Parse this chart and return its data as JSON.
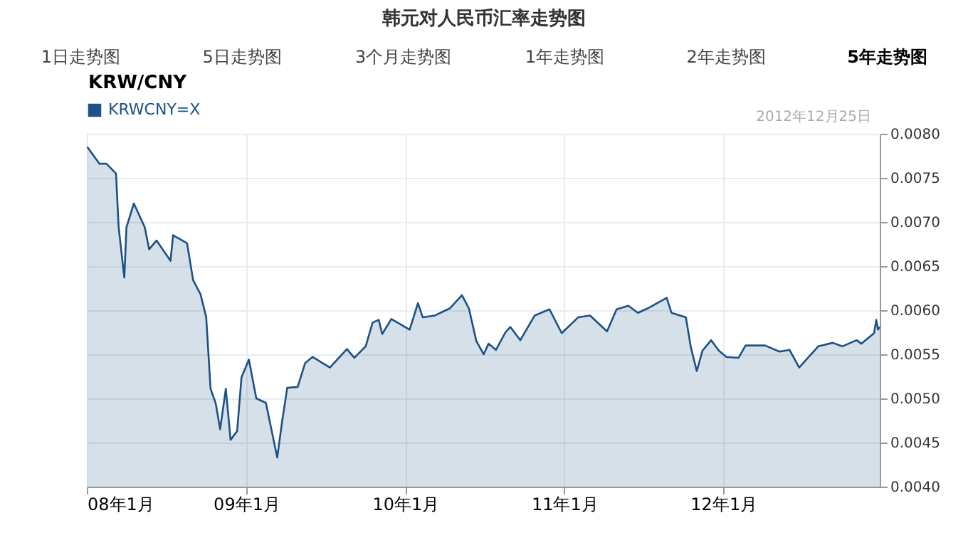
{
  "chart_data": {
    "type": "area",
    "title": "韩元对人民币汇率走势图",
    "subtitle": "KRW/CNY",
    "annotations": [
      "1日走势图",
      "5日走势图",
      "3个月走势图",
      "1年走势图",
      "2年走势图",
      "5年走势图",
      "2012年12月25日"
    ],
    "x": [
      "2008-01-02",
      "2008-01-30",
      "2008-02-15",
      "2008-03-08",
      "2008-03-14",
      "2008-03-27",
      "2008-04-01",
      "2008-04-18",
      "2008-05-13",
      "2008-05-23",
      "2008-06-09",
      "2008-07-11",
      "2008-07-17",
      "2008-08-18",
      "2008-09-01",
      "2008-09-18",
      "2008-10-01",
      "2008-10-11",
      "2008-10-23",
      "2008-11-02",
      "2008-11-15",
      "2008-11-26",
      "2008-12-11",
      "2008-12-21",
      "2009-01-07",
      "2009-01-24",
      "2009-02-15",
      "2009-03-13",
      "2009-03-24",
      "2009-04-05",
      "2009-04-29",
      "2009-05-16",
      "2009-06-02",
      "2009-07-12",
      "2009-08-20",
      "2009-09-06",
      "2009-10-02",
      "2009-10-18",
      "2009-11-01",
      "2009-11-09",
      "2009-11-30",
      "2010-01-11",
      "2010-01-30",
      "2010-02-10",
      "2010-03-10",
      "2010-04-13",
      "2010-05-11",
      "2010-05-27",
      "2010-06-13",
      "2010-06-30",
      "2010-07-11",
      "2010-07-28",
      "2010-08-19",
      "2010-08-30",
      "2010-09-22",
      "2010-10-25",
      "2010-11-28",
      "2010-12-26",
      "2011-02-02",
      "2011-03-01",
      "2011-04-09",
      "2011-05-01",
      "2011-05-28",
      "2011-06-19",
      "2011-07-11",
      "2011-08-24",
      "2011-09-04",
      "2011-10-07",
      "2011-10-18",
      "2011-11-01",
      "2011-11-14",
      "2011-12-04",
      "2011-12-22",
      "2012-01-08",
      "2012-02-05",
      "2012-02-21",
      "2012-04-06",
      "2012-05-09",
      "2012-06-01",
      "2012-06-23",
      "2012-07-15",
      "2012-08-06",
      "2012-09-08",
      "2012-09-30",
      "2012-11-02",
      "2012-11-13",
      "2012-12-12",
      "2012-12-17",
      "2012-12-21",
      "2012-12-25"
    ],
    "series": [
      {
        "name": "KRWCNY=X",
        "color": "#1c5186",
        "values": [
          0.00785,
          0.00766,
          0.00766,
          0.00755,
          0.00694,
          0.00637,
          0.00694,
          0.00721,
          0.00694,
          0.00669,
          0.00679,
          0.00656,
          0.00685,
          0.00676,
          0.00634,
          0.00618,
          0.00592,
          0.00511,
          0.00494,
          0.00465,
          0.00511,
          0.00453,
          0.00463,
          0.00524,
          0.00544,
          0.005,
          0.00495,
          0.00433,
          0.00473,
          0.00512,
          0.00513,
          0.0054,
          0.00547,
          0.00535,
          0.00556,
          0.00546,
          0.00559,
          0.00586,
          0.00589,
          0.00573,
          0.0059,
          0.00578,
          0.00608,
          0.00592,
          0.00594,
          0.00602,
          0.00617,
          0.00602,
          0.00565,
          0.0055,
          0.00562,
          0.00555,
          0.00575,
          0.00581,
          0.00566,
          0.00594,
          0.00601,
          0.00574,
          0.00592,
          0.00594,
          0.00576,
          0.00601,
          0.00605,
          0.00597,
          0.00602,
          0.00614,
          0.00597,
          0.00592,
          0.00559,
          0.00531,
          0.00554,
          0.00566,
          0.00554,
          0.00547,
          0.00546,
          0.0056,
          0.0056,
          0.00553,
          0.00555,
          0.00535,
          0.00547,
          0.00559,
          0.00563,
          0.00559,
          0.00566,
          0.00562,
          0.00574,
          0.00589,
          0.00578,
          0.00581
        ]
      }
    ],
    "xlim": [
      "2008-01-01",
      "2012-12-25"
    ],
    "xticks": [
      {
        "value": "2008-01-01",
        "label": "08年1月"
      },
      {
        "value": "2009-01-01",
        "label": "09年1月"
      },
      {
        "value": "2010-01-01",
        "label": "10年1月"
      },
      {
        "value": "2011-01-01",
        "label": "11年1月"
      },
      {
        "value": "2012-01-01",
        "label": "12年1月"
      }
    ],
    "ylim": [
      0.004,
      0.008
    ],
    "yticks": [
      {
        "value": 0.004,
        "label": "0.0040"
      },
      {
        "value": 0.0045,
        "label": "0.0045"
      },
      {
        "value": 0.005,
        "label": "0.0050"
      },
      {
        "value": 0.0055,
        "label": "0.0055"
      },
      {
        "value": 0.006,
        "label": "0.0060"
      },
      {
        "value": 0.0065,
        "label": "0.0065"
      },
      {
        "value": 0.007,
        "label": "0.0070"
      },
      {
        "value": 0.0075,
        "label": "0.0075"
      },
      {
        "value": 0.008,
        "label": "0.0080"
      }
    ],
    "grid": true,
    "legend": "top left"
  }
}
